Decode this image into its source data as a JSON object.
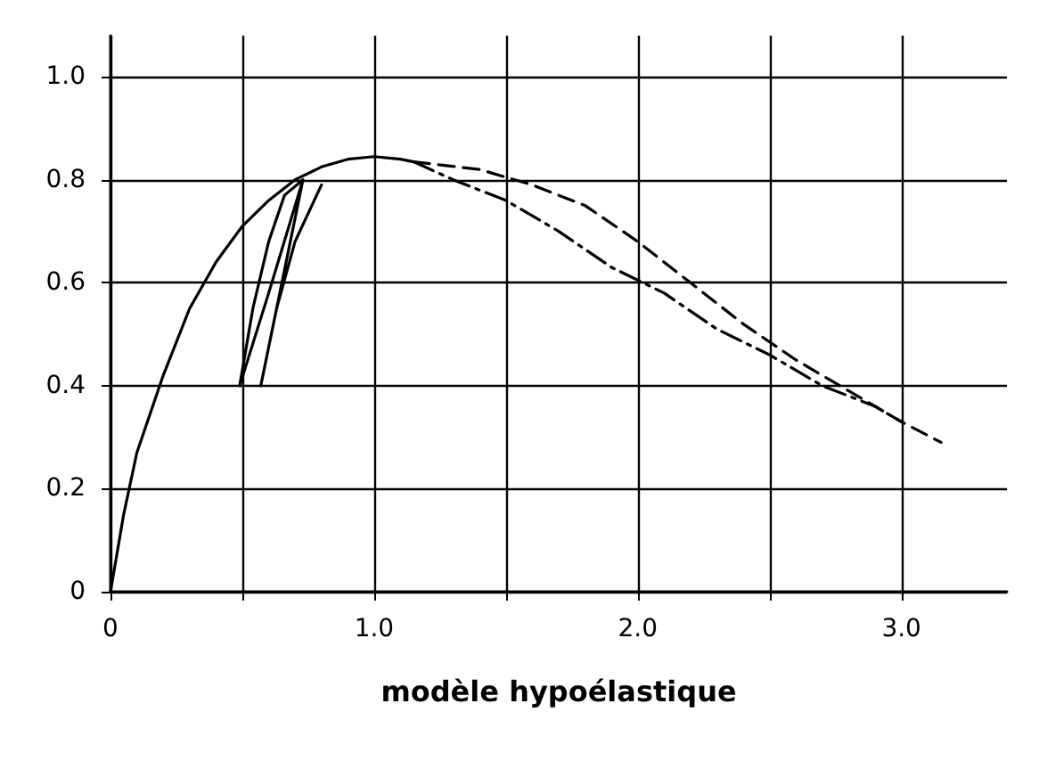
{
  "chart_data": {
    "type": "line",
    "xlabel": "modèle hypoélastique",
    "xlim": [
      0,
      3.4
    ],
    "ylim": [
      0,
      1.08
    ],
    "xticks": [
      0,
      {
        "value": 0.5,
        "label": null
      },
      {
        "value": 1,
        "label": "1.0"
      },
      {
        "value": 1.5,
        "label": null
      },
      {
        "value": 2,
        "label": "2.0"
      },
      {
        "value": 2.5,
        "label": null
      },
      {
        "value": 3,
        "label": "3.0"
      }
    ],
    "yticks": [
      0,
      0.2,
      0.4,
      0.6,
      0.8,
      {
        "value": 1,
        "label": "1.0"
      }
    ],
    "grid": true,
    "marker": "none",
    "series": [
      {
        "color": "#000000",
        "line_style": "solid",
        "x": [
          0,
          0.05,
          0.1,
          0.2,
          0.3,
          0.4,
          0.5,
          0.6,
          0.7,
          0.8,
          0.9,
          1.0,
          1.1,
          1.15
        ],
        "values": [
          0,
          0.15,
          0.27,
          0.42,
          0.55,
          0.64,
          0.71,
          0.76,
          0.8,
          0.825,
          0.84,
          0.845,
          0.84,
          0.835
        ]
      },
      {
        "color": "#000000",
        "line_style": "solid",
        "x": [
          0.73,
          0.6,
          0.49,
          0.54,
          0.6,
          0.66,
          0.73,
          0.65,
          0.57,
          0.63,
          0.7,
          0.8
        ],
        "values": [
          0.8,
          0.58,
          0.4,
          0.55,
          0.68,
          0.77,
          0.8,
          0.6,
          0.4,
          0.55,
          0.68,
          0.79
        ]
      },
      {
        "color": "#000000",
        "line_style": "dashed",
        "x": [
          1.15,
          1.4,
          1.6,
          1.8,
          2.0,
          2.2,
          2.4,
          2.6,
          2.8,
          3.0,
          3.15
        ],
        "values": [
          0.835,
          0.82,
          0.79,
          0.75,
          0.68,
          0.6,
          0.52,
          0.45,
          0.39,
          0.33,
          0.29
        ]
      },
      {
        "color": "#000000",
        "line_style": "dashdot",
        "x": [
          1.15,
          1.3,
          1.5,
          1.7,
          1.9,
          2.1,
          2.3,
          2.5,
          2.7,
          2.9,
          3.0
        ],
        "values": [
          0.835,
          0.8,
          0.76,
          0.7,
          0.63,
          0.58,
          0.51,
          0.46,
          0.4,
          0.36,
          0.33
        ]
      }
    ]
  }
}
